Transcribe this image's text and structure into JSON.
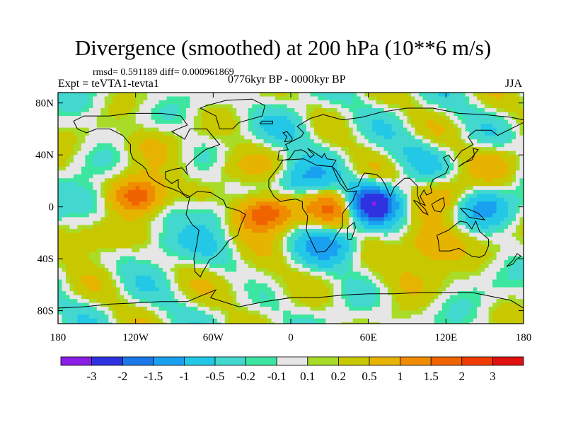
{
  "title": "Divergence (smoothed) at 200 hPa (10**6 m/s)",
  "stats": "rmsd= 0.591189 diff= 0.000961869",
  "experiment": "Expt = teVTA1-tevta1",
  "period": "0776kyr BP - 0000kyr BP",
  "season": "JJA",
  "axes": {
    "lat_ticks": [
      {
        "value": 80,
        "label": "80N"
      },
      {
        "value": 40,
        "label": "40N"
      },
      {
        "value": 0,
        "label": "0"
      },
      {
        "value": -40,
        "label": "40S"
      },
      {
        "value": -80,
        "label": "80S"
      }
    ],
    "lon_ticks": [
      {
        "value": -180,
        "label": "180"
      },
      {
        "value": -120,
        "label": "120W"
      },
      {
        "value": -60,
        "label": "60W"
      },
      {
        "value": 0,
        "label": "0"
      },
      {
        "value": 60,
        "label": "60E"
      },
      {
        "value": 120,
        "label": "120E"
      },
      {
        "value": 180,
        "label": "180"
      }
    ]
  },
  "colorbar": {
    "colors": [
      "#8a1ee6",
      "#2e32e0",
      "#1a78e8",
      "#1aa0f0",
      "#22c8e6",
      "#42d8d0",
      "#3ce6a0",
      "#e6e6e6",
      "#a8dc28",
      "#c8c800",
      "#e6b400",
      "#f08c00",
      "#f06400",
      "#f03c00",
      "#e01010"
    ],
    "labels": [
      "-3",
      "-2",
      "-1.5",
      "-1",
      "-0.5",
      "-0.2",
      "-0.1",
      "0.1",
      "0.2",
      "0.5",
      "1",
      "1.5",
      "2",
      "3"
    ]
  },
  "field_anomalies": [
    {
      "lon": -118,
      "lat": 8,
      "v": 2.2
    },
    {
      "lon": -150,
      "lat": 5,
      "v": -0.8
    },
    {
      "lon": -20,
      "lat": -5,
      "v": 2.4
    },
    {
      "lon": 40,
      "lat": 0,
      "v": 2.0
    },
    {
      "lon": 60,
      "lat": 2,
      "v": -3.2
    },
    {
      "lon": 10,
      "lat": 20,
      "v": -1.0
    },
    {
      "lon": 30,
      "lat": -30,
      "v": -1.1
    },
    {
      "lon": 150,
      "lat": 0,
      "v": -1.0
    },
    {
      "lon": 110,
      "lat": -30,
      "v": 1.2
    },
    {
      "lon": -60,
      "lat": -5,
      "v": -0.7
    },
    {
      "lon": -150,
      "lat": -25,
      "v": 0.9
    },
    {
      "lon": -100,
      "lat": -30,
      "v": -0.6
    },
    {
      "lon": 120,
      "lat": 10,
      "v": 0.8
    },
    {
      "lon": -45,
      "lat": 30,
      "v": 0.6
    },
    {
      "lon": 160,
      "lat": 35,
      "v": 0.5
    },
    {
      "lon": -110,
      "lat": 50,
      "v": 0.5
    },
    {
      "lon": 0,
      "lat": 60,
      "v": -0.4
    },
    {
      "lon": 90,
      "lat": -55,
      "v": 0.5
    },
    {
      "lon": -30,
      "lat": -60,
      "v": 0.4
    },
    {
      "lon": 100,
      "lat": 40,
      "v": -0.4
    }
  ]
}
